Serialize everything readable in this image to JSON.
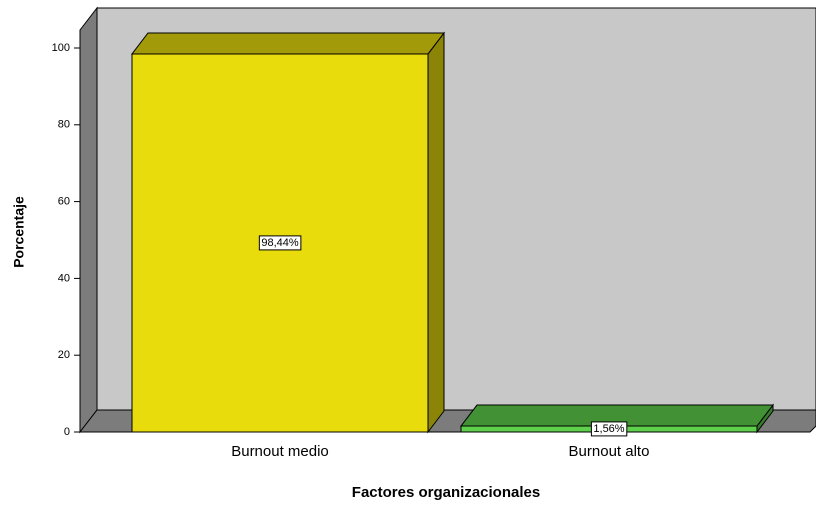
{
  "chart_data": {
    "type": "bar",
    "x_label": "Factores organizacionales",
    "y_label": "Porcentaje",
    "categories": [
      "Burnout medio",
      "Burnout alto"
    ],
    "values": [
      98.44,
      1.56
    ],
    "value_labels": [
      "98,44%",
      "1,56%"
    ],
    "colors": [
      "#e8dc0c",
      "#5ed04b"
    ],
    "ylim": [
      0,
      105
    ],
    "yticks": [
      0,
      20,
      40,
      60,
      80,
      100
    ],
    "grid": false
  }
}
